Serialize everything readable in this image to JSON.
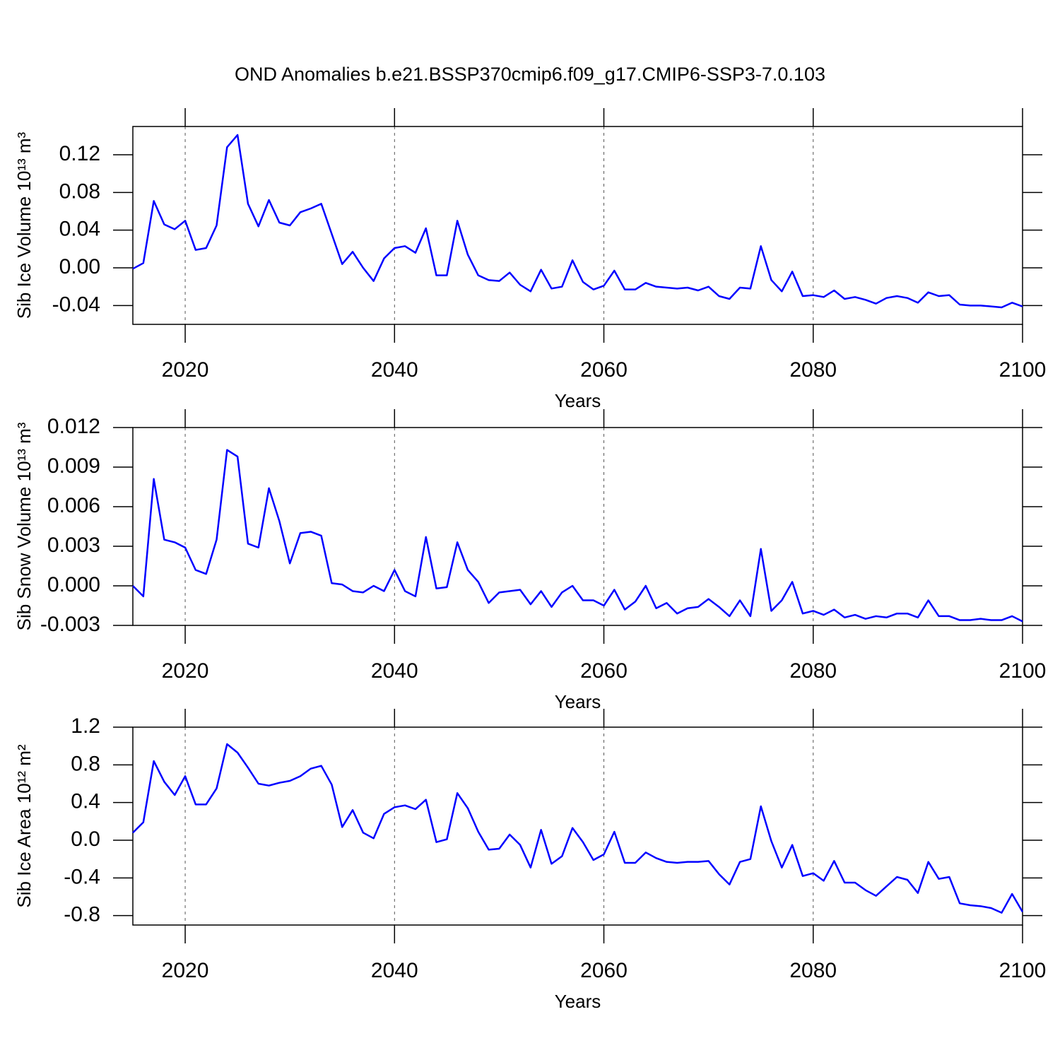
{
  "title": "OND Anomalies b.e21.BSSP370cmip6.f09_g17.CMIP6-SSP3-7.0.103",
  "chart_data": [
    {
      "type": "line",
      "y_label": "Sib Ice Volume 10¹³ m³",
      "x_label": "Years",
      "color": "#0000ff",
      "xgrid": true,
      "xlim": [
        2015,
        2100
      ],
      "xticks": [
        2020,
        2040,
        2060,
        2080,
        2100
      ],
      "ylim": [
        -0.06,
        0.15
      ],
      "yticks": [
        -0.04,
        {
          "value": 0,
          "label": "0.00"
        },
        0.04,
        0.08,
        0.12
      ],
      "x": [
        2015,
        2016,
        2017,
        2018,
        2019,
        2020,
        2021,
        2022,
        2023,
        2024,
        2025,
        2026,
        2027,
        2028,
        2029,
        2030,
        2031,
        2032,
        2033,
        2034,
        2035,
        2036,
        2037,
        2038,
        2039,
        2040,
        2041,
        2042,
        2043,
        2044,
        2045,
        2046,
        2047,
        2048,
        2049,
        2050,
        2051,
        2052,
        2053,
        2054,
        2055,
        2056,
        2057,
        2058,
        2059,
        2060,
        2061,
        2062,
        2063,
        2064,
        2065,
        2066,
        2067,
        2068,
        2069,
        2070,
        2071,
        2072,
        2073,
        2074,
        2075,
        2076,
        2077,
        2078,
        2079,
        2080,
        2081,
        2082,
        2083,
        2084,
        2085,
        2086,
        2087,
        2088,
        2089,
        2090,
        2091,
        2092,
        2093,
        2094,
        2095,
        2096,
        2097,
        2098,
        2099,
        2100
      ],
      "values": [
        -0.001,
        0.005,
        0.071,
        0.046,
        0.041,
        0.05,
        0.019,
        0.021,
        0.045,
        0.128,
        0.141,
        0.068,
        0.044,
        0.072,
        0.048,
        0.045,
        0.059,
        0.063,
        0.068,
        0.036,
        0.004,
        0.017,
        0.0,
        -0.014,
        0.01,
        0.021,
        0.023,
        0.016,
        0.042,
        -0.008,
        -0.008,
        0.05,
        0.014,
        -0.008,
        -0.013,
        -0.014,
        -0.005,
        -0.018,
        -0.025,
        -0.002,
        -0.022,
        -0.02,
        0.008,
        -0.015,
        -0.023,
        -0.019,
        -0.003,
        -0.023,
        -0.023,
        -0.016,
        -0.02,
        -0.021,
        -0.022,
        -0.021,
        -0.024,
        -0.02,
        -0.03,
        -0.033,
        -0.021,
        -0.022,
        0.023,
        -0.013,
        -0.025,
        -0.004,
        -0.03,
        -0.029,
        -0.031,
        -0.024,
        -0.033,
        -0.031,
        -0.034,
        -0.038,
        -0.032,
        -0.03,
        -0.032,
        -0.037,
        -0.026,
        -0.03,
        -0.029,
        -0.039,
        -0.04,
        -0.04,
        -0.041,
        -0.042,
        -0.037,
        -0.041
      ]
    },
    {
      "type": "line",
      "y_label": "Sib Snow Volume 10¹³ m³",
      "x_label": "Years",
      "color": "#0000ff",
      "xgrid": true,
      "xlim": [
        2015,
        2100
      ],
      "xticks": [
        2020,
        2040,
        2060,
        2080,
        2100
      ],
      "ylim": [
        -0.003,
        0.012
      ],
      "yticks": [
        -0.003,
        {
          "value": 0,
          "label": "0.000"
        },
        0.003,
        0.006,
        0.009,
        0.012
      ],
      "x": [
        2015,
        2016,
        2017,
        2018,
        2019,
        2020,
        2021,
        2022,
        2023,
        2024,
        2025,
        2026,
        2027,
        2028,
        2029,
        2030,
        2031,
        2032,
        2033,
        2034,
        2035,
        2036,
        2037,
        2038,
        2039,
        2040,
        2041,
        2042,
        2043,
        2044,
        2045,
        2046,
        2047,
        2048,
        2049,
        2050,
        2051,
        2052,
        2053,
        2054,
        2055,
        2056,
        2057,
        2058,
        2059,
        2060,
        2061,
        2062,
        2063,
        2064,
        2065,
        2066,
        2067,
        2068,
        2069,
        2070,
        2071,
        2072,
        2073,
        2074,
        2075,
        2076,
        2077,
        2078,
        2079,
        2080,
        2081,
        2082,
        2083,
        2084,
        2085,
        2086,
        2087,
        2088,
        2089,
        2090,
        2091,
        2092,
        2093,
        2094,
        2095,
        2096,
        2097,
        2098,
        2099,
        2100
      ],
      "values": [
        0.0,
        -0.0008,
        0.0081,
        0.0035,
        0.0033,
        0.0029,
        0.0012,
        0.0009,
        0.0035,
        0.0103,
        0.0098,
        0.0032,
        0.0029,
        0.0074,
        0.0049,
        0.0017,
        0.004,
        0.0041,
        0.0038,
        0.0002,
        0.0001,
        -0.0004,
        -0.0005,
        0.0,
        -0.0004,
        0.0012,
        -0.0004,
        -0.0008,
        0.0037,
        -0.0002,
        -0.0001,
        0.0033,
        0.0012,
        0.0003,
        -0.0013,
        -0.0005,
        -0.0004,
        -0.0003,
        -0.0014,
        -0.0004,
        -0.0016,
        -0.0005,
        0.0,
        -0.0011,
        -0.0011,
        -0.0015,
        -0.0003,
        -0.0018,
        -0.0012,
        0.0,
        -0.0017,
        -0.0013,
        -0.0021,
        -0.0017,
        -0.0016,
        -0.001,
        -0.0016,
        -0.0023,
        -0.0011,
        -0.0023,
        0.0028,
        -0.0019,
        -0.0011,
        0.0003,
        -0.0021,
        -0.0019,
        -0.0022,
        -0.0018,
        -0.0024,
        -0.0022,
        -0.0025,
        -0.0023,
        -0.0024,
        -0.0021,
        -0.0021,
        -0.0024,
        -0.0011,
        -0.0023,
        -0.0023,
        -0.0026,
        -0.0026,
        -0.0025,
        -0.0026,
        -0.0026,
        -0.0023,
        -0.0027
      ]
    },
    {
      "type": "line",
      "y_label": "Sib Ice Area 10¹² m²",
      "x_label": "Years",
      "color": "#0000ff",
      "xgrid": true,
      "xlim": [
        2015,
        2100
      ],
      "xticks": [
        2020,
        2040,
        2060,
        2080,
        2100
      ],
      "ylim": [
        -0.9,
        1.2
      ],
      "yticks": [
        -0.8,
        -0.4,
        {
          "value": 0,
          "label": "0.0"
        },
        0.4,
        0.8,
        1.2
      ],
      "x": [
        2015,
        2016,
        2017,
        2018,
        2019,
        2020,
        2021,
        2022,
        2023,
        2024,
        2025,
        2026,
        2027,
        2028,
        2029,
        2030,
        2031,
        2032,
        2033,
        2034,
        2035,
        2036,
        2037,
        2038,
        2039,
        2040,
        2041,
        2042,
        2043,
        2044,
        2045,
        2046,
        2047,
        2048,
        2049,
        2050,
        2051,
        2052,
        2053,
        2054,
        2055,
        2056,
        2057,
        2058,
        2059,
        2060,
        2061,
        2062,
        2063,
        2064,
        2065,
        2066,
        2067,
        2068,
        2069,
        2070,
        2071,
        2072,
        2073,
        2074,
        2075,
        2076,
        2077,
        2078,
        2079,
        2080,
        2081,
        2082,
        2083,
        2084,
        2085,
        2086,
        2087,
        2088,
        2089,
        2090,
        2091,
        2092,
        2093,
        2094,
        2095,
        2096,
        2097,
        2098,
        2099,
        2100
      ],
      "values": [
        0.08,
        0.19,
        0.84,
        0.62,
        0.48,
        0.68,
        0.38,
        0.38,
        0.55,
        1.02,
        0.93,
        0.77,
        0.6,
        0.58,
        0.61,
        0.63,
        0.68,
        0.76,
        0.79,
        0.59,
        0.14,
        0.32,
        0.08,
        0.02,
        0.28,
        0.35,
        0.37,
        0.33,
        0.43,
        -0.02,
        0.01,
        0.5,
        0.34,
        0.09,
        -0.1,
        -0.09,
        0.06,
        -0.05,
        -0.29,
        0.11,
        -0.25,
        -0.17,
        0.13,
        -0.02,
        -0.21,
        -0.15,
        0.09,
        -0.24,
        -0.24,
        -0.13,
        -0.19,
        -0.23,
        -0.24,
        -0.23,
        -0.23,
        -0.22,
        -0.36,
        -0.47,
        -0.23,
        -0.2,
        0.36,
        -0.01,
        -0.29,
        -0.05,
        -0.38,
        -0.35,
        -0.43,
        -0.22,
        -0.45,
        -0.45,
        -0.53,
        -0.59,
        -0.49,
        -0.39,
        -0.42,
        -0.56,
        -0.23,
        -0.41,
        -0.39,
        -0.67,
        -0.69,
        -0.7,
        -0.72,
        -0.77,
        -0.57,
        -0.76
      ]
    }
  ]
}
